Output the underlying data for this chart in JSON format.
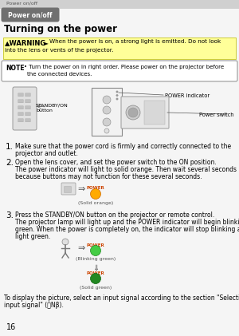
{
  "page_number": "16",
  "breadcrumb": "Power on/off",
  "section_tab": "Power on/off",
  "section_title": "Turning on the power",
  "warning_prefix": "▲WARNING",
  "warning_arrow": "►",
  "warning_text": "When the power is on, a strong light is emitted. Do not look\ninto the lens or vents of the projector.",
  "note_label": "NOTE",
  "note_text": " • Turn the power on in right order. Please power on the projector before\nthe connected devices.",
  "step1_num": "1.",
  "step1_text": "Make sure that the power cord is firmly and correctly connected to the\nprojector and outlet.",
  "step2_num": "2.",
  "step2_text": "Open the lens cover, and set the power switch to the ON position.\nThe power indicator will light to solid orange. Then wait several seconds\nbecause buttons may not function for these several seconds.",
  "step2_caption": "(Solid orange)",
  "step3_num": "3.",
  "step3_text": "Press the STANDBY/ON button on the projector or remote control.\nThe projector lamp will light up and the POWER indicator will begin blinking\ngreen. When the power is completely on, the indicator will stop blinking and\nlight green.",
  "step3_caption1": "(Blinking green)",
  "step3_caption2": "(Solid green)",
  "footer_text": "To display the picture, select an input signal according to the section \"Selecting an\ninput signal\" (⌹Nβ).",
  "bg_color": "#f5f5f5",
  "breadcrumb_bg": "#d0d0d0",
  "tab_bg": "#707070",
  "tab_text_color": "#ffffff",
  "warning_bg": "#ffff99",
  "warning_border": "#cccc00",
  "note_border": "#888888",
  "note_bg": "#ffffff",
  "power_label": "POWER",
  "standby_label": "STANDBY/ON\nbutton",
  "power_switch_label": "Power switch",
  "power_indicator_label": "POWER indicator"
}
